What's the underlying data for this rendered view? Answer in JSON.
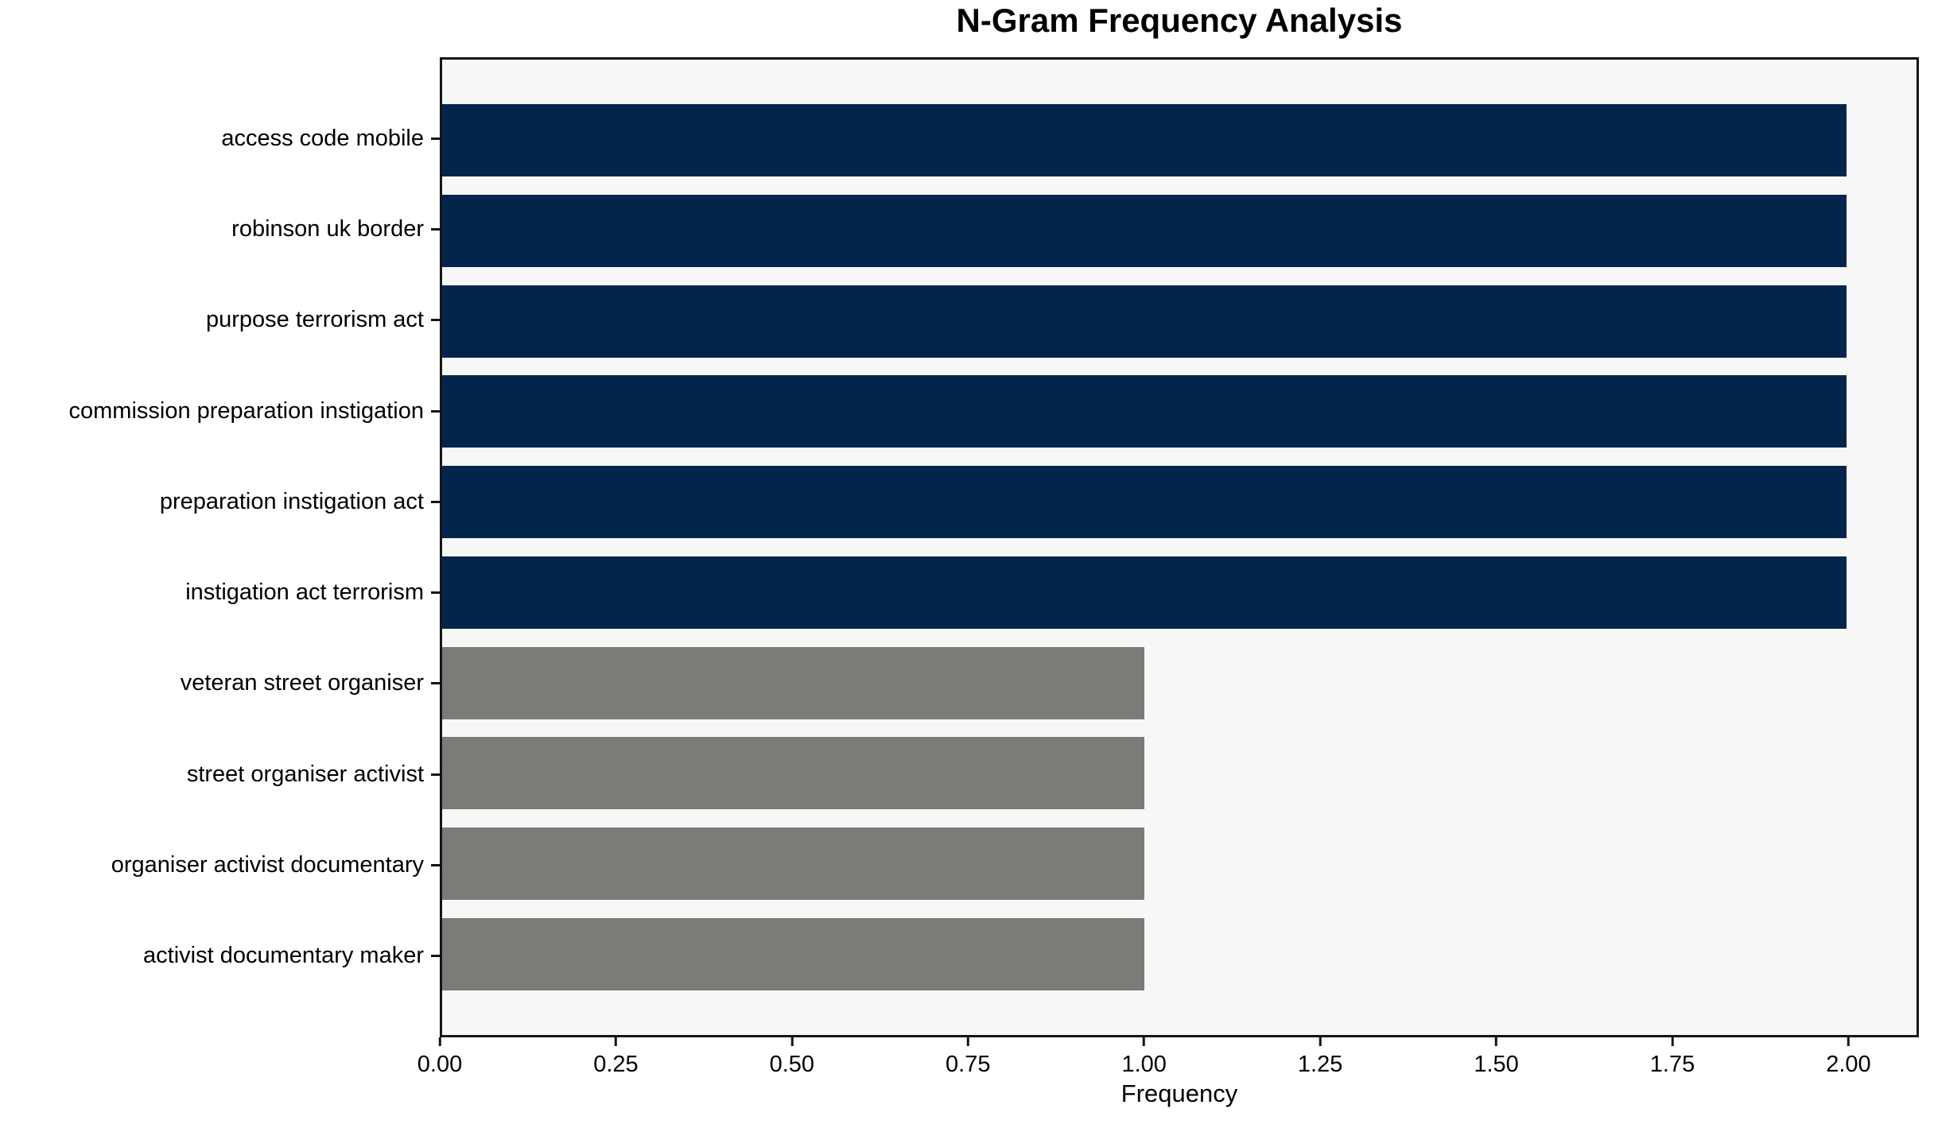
{
  "chart_data": {
    "type": "bar",
    "orientation": "horizontal",
    "title": "N-Gram Frequency Analysis",
    "xlabel": "Frequency",
    "ylabel": "",
    "categories": [
      "access code mobile",
      "robinson uk border",
      "purpose terrorism act",
      "commission preparation instigation",
      "preparation instigation act",
      "instigation act terrorism",
      "veteran street organiser",
      "street organiser activist",
      "organiser activist documentary",
      "activist documentary maker"
    ],
    "values": [
      2,
      2,
      2,
      2,
      2,
      2,
      1,
      1,
      1,
      1
    ],
    "bar_colors": [
      "#04254b",
      "#04254b",
      "#04254b",
      "#04254b",
      "#04254b",
      "#04254b",
      "#7b7b78",
      "#7b7b78",
      "#7b7b78",
      "#7b7b78"
    ],
    "xlim": [
      0,
      2.1
    ],
    "x_tick_values": [
      0,
      0.25,
      0.5,
      0.75,
      1.0,
      1.25,
      1.5,
      1.75,
      2.0
    ],
    "x_ticks": [
      "0.00",
      "0.25",
      "0.50",
      "0.75",
      "1.00",
      "1.25",
      "1.50",
      "1.75",
      "2.00"
    ],
    "grid": false,
    "legend": null,
    "colors": {
      "navy": "#04254b",
      "gray": "#7b7b78",
      "plot_background": "#f7f7f7",
      "figure_background": "#ffffff",
      "spine": "#151515",
      "text": "#000000"
    }
  }
}
